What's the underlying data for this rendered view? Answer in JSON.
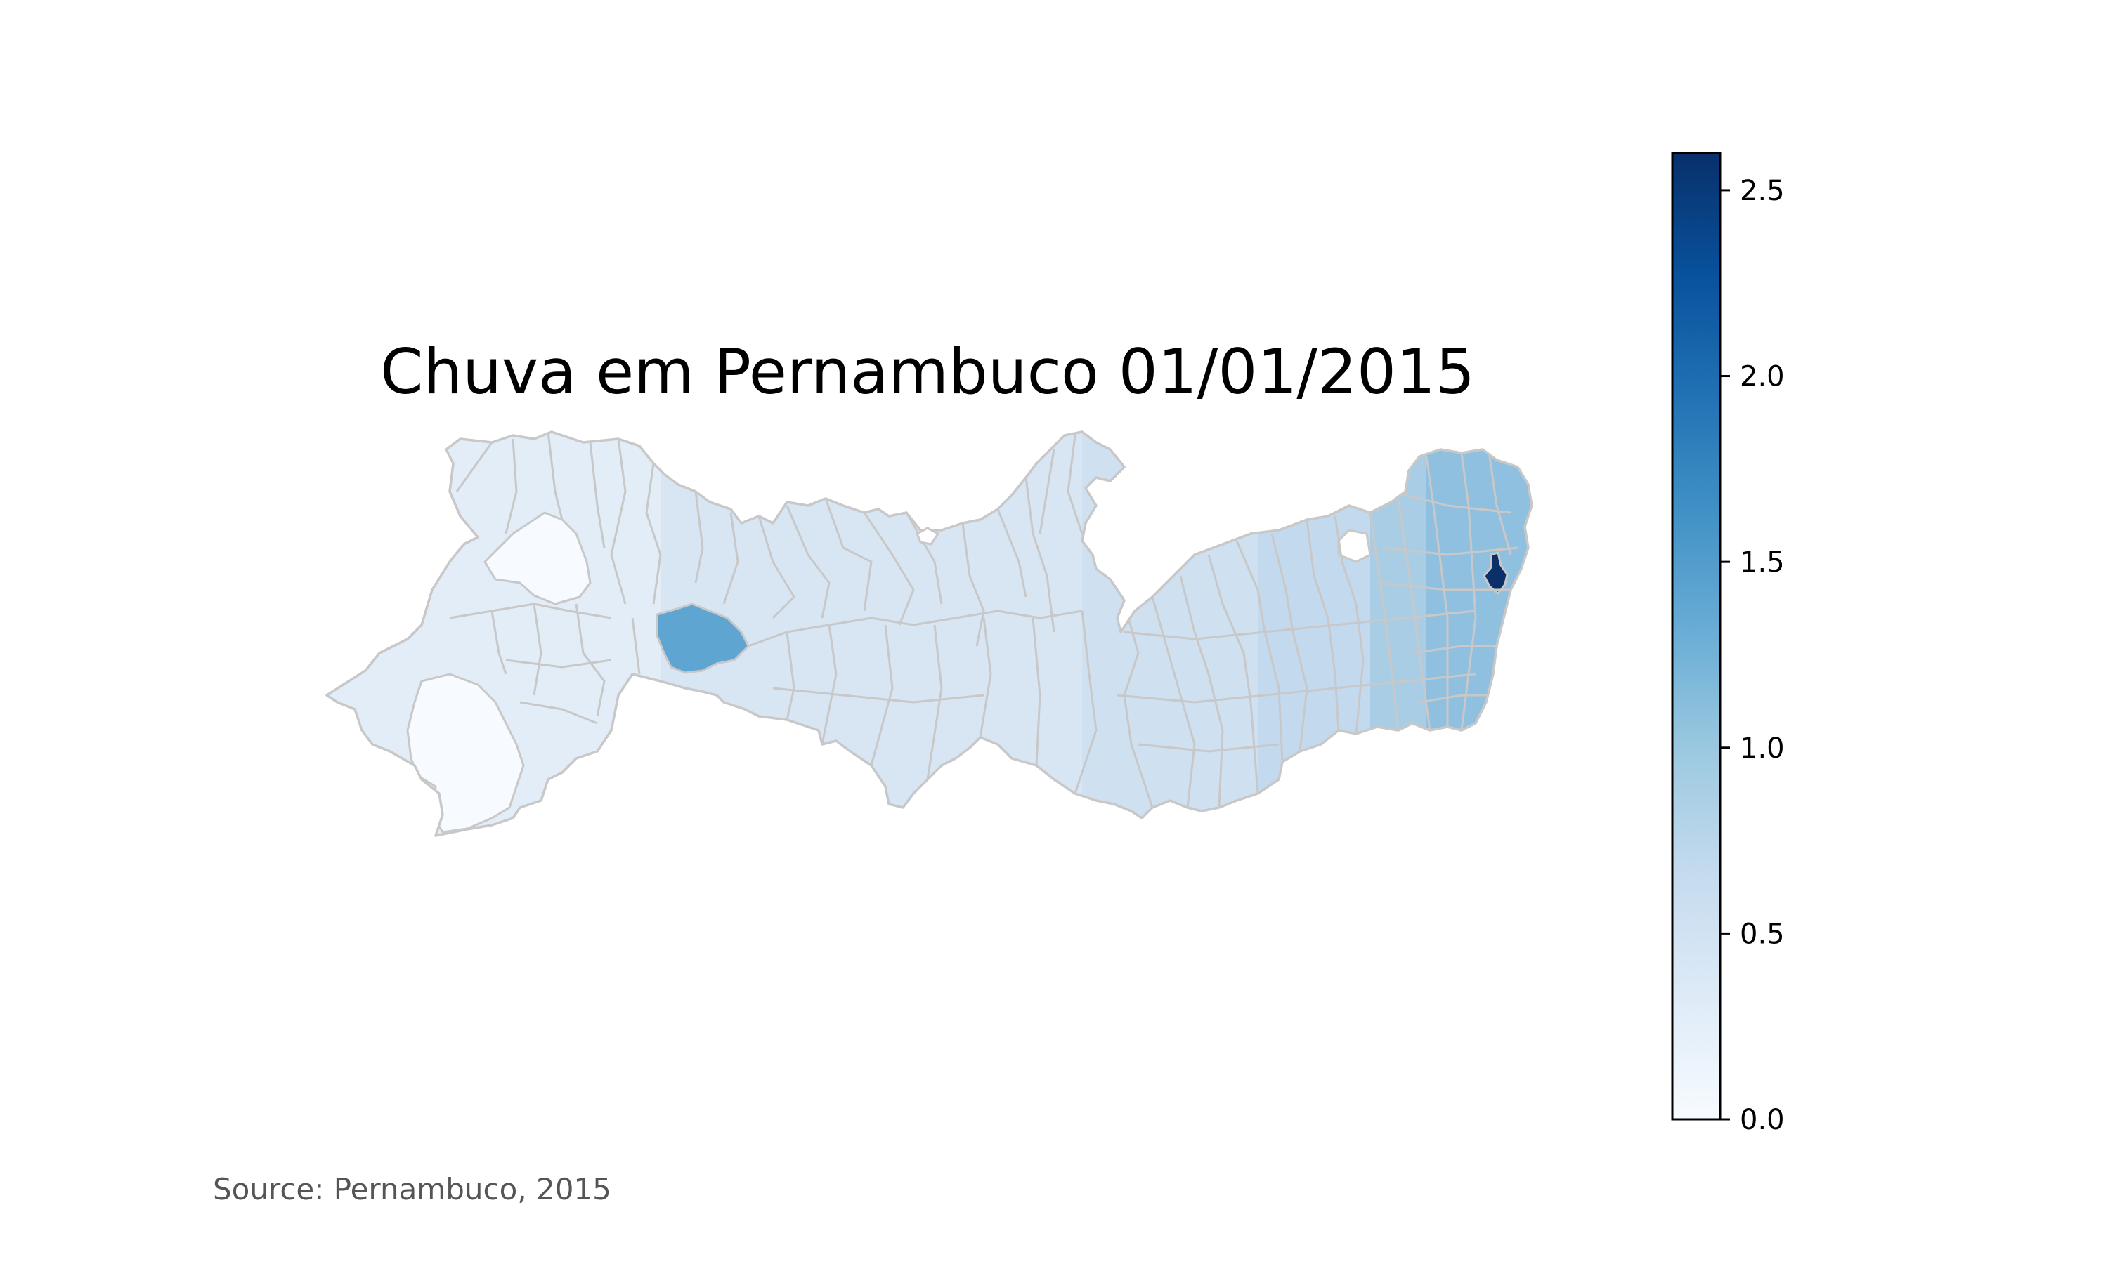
{
  "title": "Chuva em Pernambuco 01/01/2015",
  "source": "Source: Pernambuco, 2015",
  "map": {
    "region": "Pernambuco",
    "date": "01/01/2015",
    "colormap": "Blues",
    "border_color": "#c8c8c8",
    "highlighted_values": {
      "central_sertao_municipality": 1.4,
      "coastal_municipality": 2.6,
      "northwest_municipality": 0.1,
      "southwest_municipality": 0.1
    }
  },
  "colorbar": {
    "min": 0.0,
    "max": 2.6,
    "ticks": [
      {
        "value": 0.0,
        "label": "0.0"
      },
      {
        "value": 0.5,
        "label": "0.5"
      },
      {
        "value": 1.0,
        "label": "1.0"
      },
      {
        "value": 1.5,
        "label": "1.5"
      },
      {
        "value": 2.0,
        "label": "2.0"
      },
      {
        "value": 2.5,
        "label": "2.5"
      }
    ],
    "colors": [
      "#f7fbff",
      "#deebf7",
      "#c6dbef",
      "#9ecae1",
      "#6baed6",
      "#4292c6",
      "#2171b5",
      "#08519c",
      "#08306b"
    ]
  }
}
